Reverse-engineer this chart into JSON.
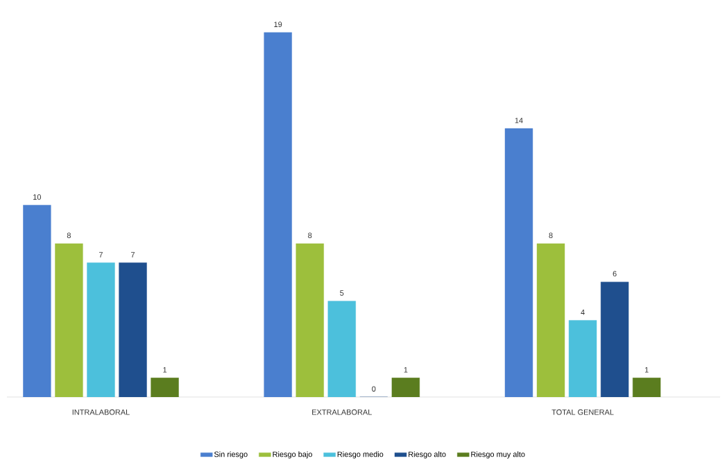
{
  "chart_data": {
    "type": "bar",
    "categories": [
      "INTRALABORAL",
      "EXTRALABORAL",
      "TOTAL GENERAL"
    ],
    "series": [
      {
        "name": "Sin riesgo",
        "color": "#4a7fcf",
        "values": [
          10,
          19,
          14
        ]
      },
      {
        "name": "Riesgo bajo",
        "color": "#9dbf3c",
        "values": [
          8,
          8,
          8
        ]
      },
      {
        "name": "Riesgo medio",
        "color": "#4cc0dc",
        "values": [
          7,
          5,
          4
        ]
      },
      {
        "name": "Riesgo alto",
        "color": "#1f4f8e",
        "values": [
          7,
          0,
          6
        ]
      },
      {
        "name": "Riesgo muy alto",
        "color": "#5b7d1f",
        "values": [
          1,
          1,
          1
        ]
      }
    ],
    "data_labels": true,
    "legend": "bottom"
  }
}
